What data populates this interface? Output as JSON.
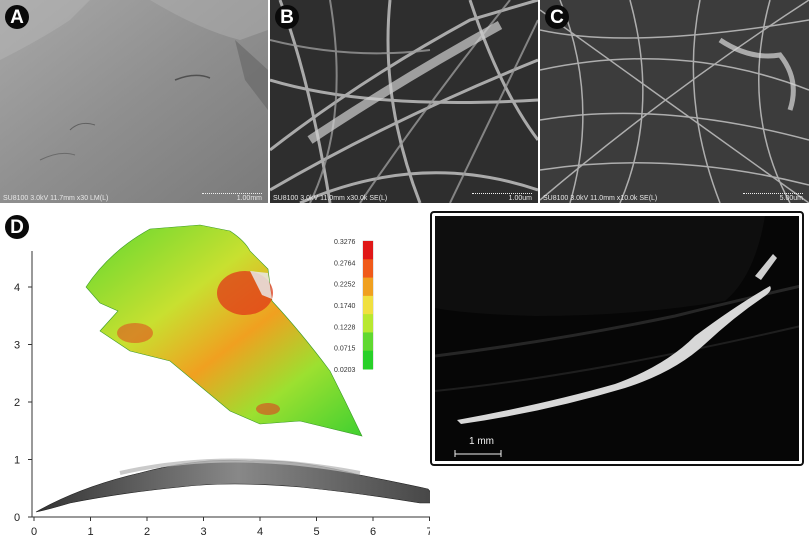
{
  "panels": {
    "a": {
      "label": "A",
      "meta": "SU8100 3.0kV 11.7mm x30 LM(L)",
      "scale": "1.00mm"
    },
    "b": {
      "label": "B",
      "meta": "SU8100 3.0kV 11.0mm x30.0k SE(L)",
      "scale": "1.00um"
    },
    "c": {
      "label": "C",
      "meta": "SU8100 3.0kV 11.0mm x10.0k SE(L)",
      "scale": "5.00um"
    },
    "d": {
      "label": "D",
      "y_ticks": [
        "0",
        "1",
        "2",
        "3",
        "4"
      ],
      "x_ticks": [
        "0",
        "1",
        "2",
        "3",
        "4",
        "5",
        "6",
        "7"
      ],
      "colorbar": {
        "labels": [
          "0.3276",
          "0.2764",
          "0.2252",
          "0.1740",
          "0.1228",
          "0.0715",
          "0.0203"
        ],
        "colors": [
          "#e01818",
          "#f05a1a",
          "#f0a020",
          "#f0e040",
          "#b8e830",
          "#60d830",
          "#28d028"
        ]
      }
    },
    "ct": {
      "scale": "1  mm"
    }
  },
  "colors": {
    "badge": "#0a0a0a",
    "sem_gray": "#8c8c8c",
    "surface_green": "#44d030",
    "surface_red": "#e03818"
  }
}
